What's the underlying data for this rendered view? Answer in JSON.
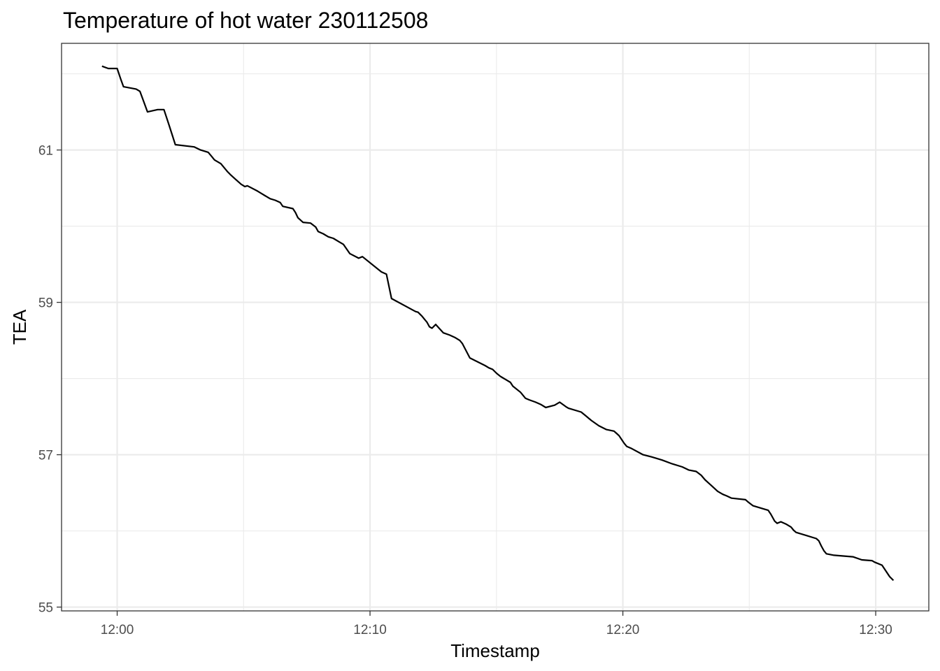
{
  "chart_data": {
    "type": "line",
    "title": "Temperature of hot water 230112508",
    "xlabel": "Timestamp",
    "ylabel": "TEA",
    "x_unit": "minutes after 12:00",
    "xlim": [
      -2.2,
      32.1
    ],
    "ylim": [
      54.95,
      62.4
    ],
    "x_ticks": [
      {
        "value": 0,
        "label": "12:00"
      },
      {
        "value": 10,
        "label": "12:10"
      },
      {
        "value": 20,
        "label": "12:20"
      },
      {
        "value": 30,
        "label": "12:30"
      }
    ],
    "y_ticks": [
      {
        "value": 55,
        "label": "55"
      },
      {
        "value": 57,
        "label": "57"
      },
      {
        "value": 59,
        "label": "59"
      },
      {
        "value": 61,
        "label": "61"
      }
    ],
    "grid": true,
    "legend": "none",
    "series": [
      {
        "color": "#000000",
        "x": [
          -0.6,
          -0.35,
          0,
          0.15,
          0.25,
          0.75,
          0.9,
          1.0,
          1.2,
          1.6,
          1.75,
          1.85,
          1.95,
          2.05,
          2.3,
          3.05,
          3.3,
          3.5,
          3.6,
          3.7,
          3.85,
          4.1,
          4.35,
          4.5,
          4.7,
          4.9,
          5.05,
          5.15,
          5.55,
          5.75,
          5.85,
          6.05,
          6.25,
          6.45,
          6.55,
          6.95,
          7.05,
          7.15,
          7.35,
          7.65,
          7.85,
          7.95,
          8.15,
          8.35,
          8.55,
          8.75,
          8.95,
          9.2,
          9.55,
          9.7,
          10.45,
          10.65,
          10.85,
          11.8,
          11.9,
          12.05,
          12.15,
          12.25,
          12.35,
          12.45,
          12.6,
          12.9,
          13.15,
          13.35,
          13.55,
          13.65,
          13.95,
          14.55,
          14.7,
          14.85,
          15.0,
          15.15,
          15.25,
          15.35,
          15.55,
          15.65,
          15.95,
          16.15,
          16.3,
          16.55,
          16.75,
          16.95,
          17.3,
          17.5,
          17.75,
          17.85,
          18.35,
          18.5,
          18.75,
          19.05,
          19.35,
          19.65,
          19.75,
          19.85,
          20.05,
          20.15,
          20.35,
          20.8,
          21.15,
          21.55,
          21.95,
          22.35,
          22.6,
          22.9,
          23.1,
          23.25,
          23.55,
          23.75,
          23.95,
          24.1,
          24.3,
          24.85,
          24.95,
          25.15,
          25.55,
          25.75,
          25.85,
          26.0,
          26.1,
          26.25,
          26.45,
          26.65,
          26.75,
          26.85,
          27.25,
          27.65,
          27.75,
          27.85,
          27.95,
          28.05,
          28.35,
          29.1,
          29.45,
          29.85,
          29.95,
          30.25,
          30.55,
          30.7
        ],
        "y": [
          62.1,
          62.07,
          62.07,
          61.92,
          61.83,
          61.8,
          61.77,
          61.68,
          61.5,
          61.53,
          61.53,
          61.53,
          61.43,
          61.33,
          61.07,
          61.04,
          61.0,
          60.98,
          60.97,
          60.93,
          60.87,
          60.82,
          60.72,
          60.67,
          60.61,
          60.55,
          60.52,
          60.53,
          60.46,
          60.42,
          60.4,
          60.36,
          60.34,
          60.31,
          60.26,
          60.23,
          60.18,
          60.11,
          60.05,
          60.04,
          59.99,
          59.93,
          59.9,
          59.86,
          59.84,
          59.8,
          59.76,
          59.64,
          59.58,
          59.6,
          59.4,
          59.37,
          59.05,
          58.88,
          58.87,
          58.82,
          58.78,
          58.74,
          58.68,
          58.66,
          58.71,
          58.6,
          58.57,
          58.54,
          58.5,
          58.46,
          58.27,
          58.17,
          58.14,
          58.12,
          58.07,
          58.03,
          58.01,
          57.99,
          57.95,
          57.9,
          57.82,
          57.74,
          57.72,
          57.69,
          57.66,
          57.62,
          57.65,
          57.69,
          57.63,
          57.61,
          57.56,
          57.52,
          57.45,
          57.38,
          57.33,
          57.31,
          57.28,
          57.25,
          57.15,
          57.11,
          57.08,
          57.0,
          56.97,
          56.93,
          56.88,
          56.84,
          56.8,
          56.78,
          56.73,
          56.67,
          56.58,
          56.52,
          56.48,
          56.46,
          56.43,
          56.41,
          56.38,
          56.33,
          56.29,
          56.27,
          56.22,
          56.13,
          56.1,
          56.12,
          56.09,
          56.05,
          56.01,
          55.98,
          55.94,
          55.9,
          55.87,
          55.8,
          55.74,
          55.7,
          55.68,
          55.66,
          55.62,
          55.61,
          55.59,
          55.55,
          55.4,
          55.35
        ]
      }
    ]
  }
}
